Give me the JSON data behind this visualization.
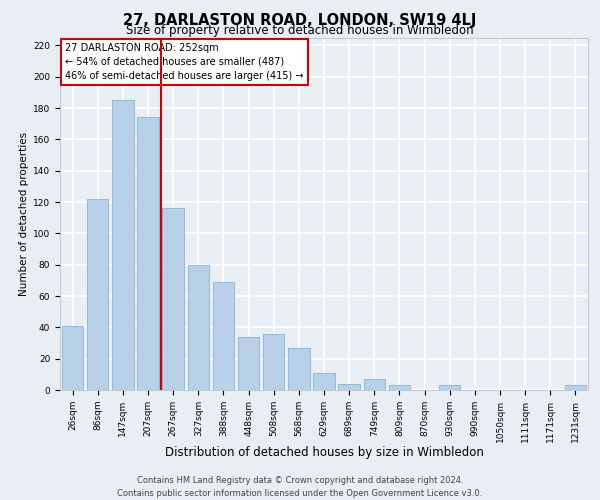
{
  "title": "27, DARLASTON ROAD, LONDON, SW19 4LJ",
  "subtitle": "Size of property relative to detached houses in Wimbledon",
  "xlabel": "Distribution of detached houses by size in Wimbledon",
  "ylabel": "Number of detached properties",
  "bar_labels": [
    "26sqm",
    "86sqm",
    "147sqm",
    "207sqm",
    "267sqm",
    "327sqm",
    "388sqm",
    "448sqm",
    "508sqm",
    "568sqm",
    "629sqm",
    "689sqm",
    "749sqm",
    "809sqm",
    "870sqm",
    "930sqm",
    "990sqm",
    "1050sqm",
    "1111sqm",
    "1171sqm",
    "1231sqm"
  ],
  "bar_values": [
    41,
    122,
    185,
    174,
    116,
    80,
    69,
    34,
    36,
    27,
    11,
    4,
    7,
    3,
    0,
    3,
    0,
    0,
    0,
    0,
    3
  ],
  "bar_color": "#b8d0e8",
  "bar_edge_color": "#8ab4d0",
  "vline_color": "#cc0000",
  "vline_x": 3.5,
  "ylim": [
    0,
    225
  ],
  "yticks": [
    0,
    20,
    40,
    60,
    80,
    100,
    120,
    140,
    160,
    180,
    200,
    220
  ],
  "annotation_title": "27 DARLASTON ROAD: 252sqm",
  "annotation_line1": "← 54% of detached houses are smaller (487)",
  "annotation_line2": "46% of semi-detached houses are larger (415) →",
  "annotation_box_color": "#ffffff",
  "annotation_box_edge": "#cc0000",
  "footnote1": "Contains HM Land Registry data © Crown copyright and database right 2024.",
  "footnote2": "Contains public sector information licensed under the Open Government Licence v3.0.",
  "bg_color": "#e8eef4",
  "plot_bg_color": "#e8eef4",
  "grid_color": "#ffffff",
  "title_fontsize": 10.5,
  "subtitle_fontsize": 8.5,
  "xlabel_fontsize": 8.5,
  "ylabel_fontsize": 7.5,
  "tick_fontsize": 6.5,
  "footnote_fontsize": 6.0
}
